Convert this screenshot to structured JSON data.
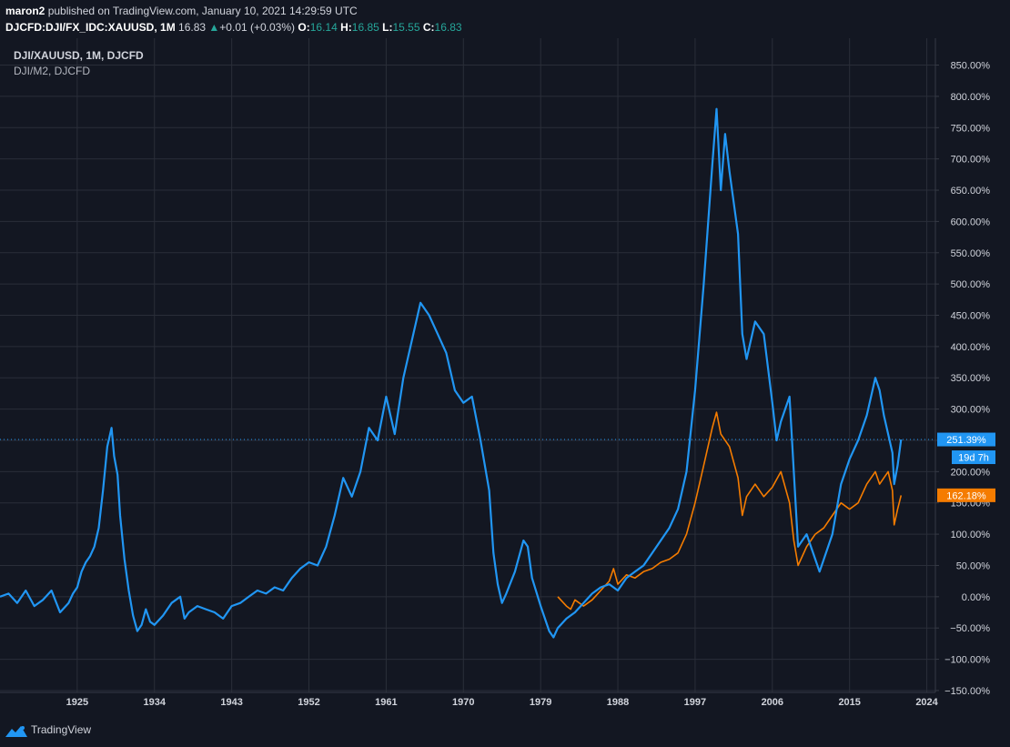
{
  "header": {
    "author": "maron2",
    "published_text": "published on TradingView.com, January 10, 2021 14:29:59 UTC",
    "symbol": "DJCFD:DJI/FX_IDC:XAUUSD, 1M",
    "last": "16.83",
    "change_arrow": "▲",
    "change": "+0.01 (+0.03%)",
    "o_label": "O:",
    "o_value": "16.14",
    "h_label": "H:",
    "h_value": "16.85",
    "l_label": "L:",
    "l_value": "15.55",
    "c_label": "C:",
    "c_value": "16.83"
  },
  "legend": {
    "main": "DJI/XAUUSD, 1M, DJCFD",
    "compare": "DJI/M2, DJCFD"
  },
  "price_tags": {
    "main_value": "251.39%",
    "countdown": "19d 7h",
    "compare_value": "162.18%"
  },
  "footer": {
    "brand": "TradingView"
  },
  "colors": {
    "background": "#131722",
    "grid": "#2a2e39",
    "main_series": "#2196f3",
    "compare_series": "#f57c00",
    "axis_text": "#d1d4dc"
  },
  "chart_data": {
    "type": "line",
    "x_unit": "year",
    "y_unit": "percent",
    "x_ticks": [
      "1925",
      "1934",
      "1943",
      "1952",
      "1961",
      "1970",
      "1979",
      "1988",
      "1997",
      "2006",
      "2015",
      "2024"
    ],
    "x_tick_years": [
      1925,
      1934,
      1943,
      1952,
      1961,
      1970,
      1979,
      1988,
      1997,
      2006,
      2015,
      2024
    ],
    "y_ticks": [
      "850.00%",
      "800.00%",
      "750.00%",
      "700.00%",
      "650.00%",
      "600.00%",
      "550.00%",
      "500.00%",
      "450.00%",
      "400.00%",
      "350.00%",
      "300.00%",
      "250.00%",
      "200.00%",
      "150.00%",
      "100.00%",
      "50.00%",
      "0.00%",
      "−50.00%",
      "−100.00%",
      "−150.00%"
    ],
    "y_tick_values": [
      850,
      800,
      750,
      700,
      650,
      600,
      550,
      500,
      450,
      400,
      350,
      300,
      250,
      200,
      150,
      100,
      50,
      0,
      -50,
      -100,
      -150
    ],
    "xlim": [
      1916,
      2025
    ],
    "ylim": [
      -153,
      893
    ],
    "series": [
      {
        "name": "DJI/XAUUSD, 1M, DJCFD",
        "color": "#2196f3",
        "points": [
          [
            1916.0,
            0
          ],
          [
            1917.0,
            5
          ],
          [
            1918.0,
            -10
          ],
          [
            1919.0,
            10
          ],
          [
            1920.0,
            -15
          ],
          [
            1921.0,
            -5
          ],
          [
            1922.0,
            10
          ],
          [
            1923.0,
            -25
          ],
          [
            1924.0,
            -10
          ],
          [
            1924.5,
            5
          ],
          [
            1925.0,
            15
          ],
          [
            1925.5,
            40
          ],
          [
            1926.0,
            55
          ],
          [
            1926.5,
            65
          ],
          [
            1927.0,
            80
          ],
          [
            1927.5,
            110
          ],
          [
            1928.0,
            170
          ],
          [
            1928.5,
            240
          ],
          [
            1929.0,
            270
          ],
          [
            1929.3,
            225
          ],
          [
            1929.7,
            195
          ],
          [
            1930.0,
            130
          ],
          [
            1930.5,
            60
          ],
          [
            1931.0,
            10
          ],
          [
            1931.5,
            -30
          ],
          [
            1932.0,
            -55
          ],
          [
            1932.5,
            -45
          ],
          [
            1933.0,
            -20
          ],
          [
            1933.5,
            -40
          ],
          [
            1934.0,
            -45
          ],
          [
            1935.0,
            -30
          ],
          [
            1936.0,
            -10
          ],
          [
            1937.0,
            0
          ],
          [
            1937.5,
            -35
          ],
          [
            1938.0,
            -25
          ],
          [
            1939.0,
            -15
          ],
          [
            1940.0,
            -20
          ],
          [
            1941.0,
            -25
          ],
          [
            1942.0,
            -35
          ],
          [
            1943.0,
            -15
          ],
          [
            1944.0,
            -10
          ],
          [
            1945.0,
            0
          ],
          [
            1946.0,
            10
          ],
          [
            1947.0,
            5
          ],
          [
            1948.0,
            15
          ],
          [
            1949.0,
            10
          ],
          [
            1950.0,
            30
          ],
          [
            1951.0,
            45
          ],
          [
            1952.0,
            55
          ],
          [
            1953.0,
            50
          ],
          [
            1954.0,
            80
          ],
          [
            1955.0,
            130
          ],
          [
            1956.0,
            190
          ],
          [
            1957.0,
            160
          ],
          [
            1958.0,
            200
          ],
          [
            1959.0,
            270
          ],
          [
            1960.0,
            250
          ],
          [
            1961.0,
            320
          ],
          [
            1962.0,
            260
          ],
          [
            1963.0,
            350
          ],
          [
            1964.0,
            410
          ],
          [
            1965.0,
            470
          ],
          [
            1966.0,
            450
          ],
          [
            1967.0,
            420
          ],
          [
            1968.0,
            390
          ],
          [
            1969.0,
            330
          ],
          [
            1970.0,
            310
          ],
          [
            1971.0,
            320
          ],
          [
            1972.0,
            250
          ],
          [
            1973.0,
            170
          ],
          [
            1973.5,
            70
          ],
          [
            1974.0,
            20
          ],
          [
            1974.5,
            -10
          ],
          [
            1975.0,
            5
          ],
          [
            1976.0,
            40
          ],
          [
            1977.0,
            90
          ],
          [
            1977.5,
            80
          ],
          [
            1978.0,
            30
          ],
          [
            1979.0,
            -15
          ],
          [
            1980.0,
            -55
          ],
          [
            1980.5,
            -65
          ],
          [
            1981.0,
            -50
          ],
          [
            1982.0,
            -35
          ],
          [
            1983.0,
            -25
          ],
          [
            1984.0,
            -10
          ],
          [
            1985.0,
            5
          ],
          [
            1986.0,
            15
          ],
          [
            1987.0,
            20
          ],
          [
            1988.0,
            10
          ],
          [
            1989.0,
            30
          ],
          [
            1990.0,
            40
          ],
          [
            1991.0,
            50
          ],
          [
            1992.0,
            70
          ],
          [
            1993.0,
            90
          ],
          [
            1994.0,
            110
          ],
          [
            1995.0,
            140
          ],
          [
            1996.0,
            200
          ],
          [
            1997.0,
            330
          ],
          [
            1998.0,
            500
          ],
          [
            1999.0,
            690
          ],
          [
            1999.5,
            780
          ],
          [
            2000.0,
            650
          ],
          [
            2000.5,
            740
          ],
          [
            2001.0,
            680
          ],
          [
            2002.0,
            580
          ],
          [
            2002.5,
            420
          ],
          [
            2003.0,
            380
          ],
          [
            2004.0,
            440
          ],
          [
            2005.0,
            420
          ],
          [
            2006.0,
            310
          ],
          [
            2006.5,
            250
          ],
          [
            2007.0,
            280
          ],
          [
            2008.0,
            320
          ],
          [
            2008.5,
            200
          ],
          [
            2009.0,
            80
          ],
          [
            2010.0,
            100
          ],
          [
            2011.0,
            60
          ],
          [
            2011.5,
            40
          ],
          [
            2012.0,
            60
          ],
          [
            2013.0,
            100
          ],
          [
            2014.0,
            180
          ],
          [
            2015.0,
            220
          ],
          [
            2016.0,
            250
          ],
          [
            2017.0,
            290
          ],
          [
            2018.0,
            350
          ],
          [
            2018.5,
            330
          ],
          [
            2019.0,
            290
          ],
          [
            2019.5,
            260
          ],
          [
            2020.0,
            230
          ],
          [
            2020.2,
            180
          ],
          [
            2020.6,
            210
          ],
          [
            2021.0,
            251.39
          ]
        ]
      },
      {
        "name": "DJI/M2, DJCFD",
        "color": "#f57c00",
        "points": [
          [
            1981.0,
            0
          ],
          [
            1982.0,
            -15
          ],
          [
            1982.5,
            -20
          ],
          [
            1983.0,
            -5
          ],
          [
            1984.0,
            -15
          ],
          [
            1985.0,
            -5
          ],
          [
            1986.0,
            10
          ],
          [
            1987.0,
            25
          ],
          [
            1987.5,
            45
          ],
          [
            1988.0,
            20
          ],
          [
            1989.0,
            35
          ],
          [
            1990.0,
            30
          ],
          [
            1991.0,
            40
          ],
          [
            1992.0,
            45
          ],
          [
            1993.0,
            55
          ],
          [
            1994.0,
            60
          ],
          [
            1995.0,
            70
          ],
          [
            1996.0,
            100
          ],
          [
            1997.0,
            150
          ],
          [
            1998.0,
            210
          ],
          [
            1999.0,
            270
          ],
          [
            1999.5,
            295
          ],
          [
            2000.0,
            260
          ],
          [
            2001.0,
            240
          ],
          [
            2002.0,
            190
          ],
          [
            2002.5,
            130
          ],
          [
            2003.0,
            160
          ],
          [
            2004.0,
            180
          ],
          [
            2005.0,
            160
          ],
          [
            2006.0,
            175
          ],
          [
            2007.0,
            200
          ],
          [
            2008.0,
            150
          ],
          [
            2008.5,
            90
          ],
          [
            2009.0,
            50
          ],
          [
            2010.0,
            80
          ],
          [
            2011.0,
            100
          ],
          [
            2012.0,
            110
          ],
          [
            2013.0,
            130
          ],
          [
            2014.0,
            150
          ],
          [
            2015.0,
            140
          ],
          [
            2016.0,
            150
          ],
          [
            2017.0,
            180
          ],
          [
            2018.0,
            200
          ],
          [
            2018.5,
            180
          ],
          [
            2019.0,
            190
          ],
          [
            2019.5,
            200
          ],
          [
            2020.0,
            170
          ],
          [
            2020.2,
            115
          ],
          [
            2020.6,
            140
          ],
          [
            2021.0,
            162.18
          ]
        ]
      }
    ],
    "last_value_line": 251.39,
    "grid": true,
    "legend_position": "top-left"
  }
}
